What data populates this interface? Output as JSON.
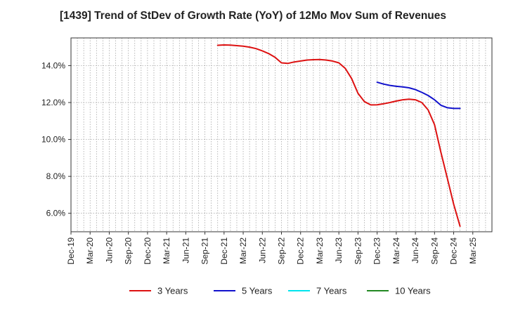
{
  "chart_data": {
    "type": "line",
    "title": "[1439]  Trend of StDev of Growth Rate (YoY) of 12Mo Mov Sum of Revenues",
    "xlabel": "",
    "ylabel": "",
    "ylim": [
      5.0,
      15.5
    ],
    "y_ticks": [
      6.0,
      8.0,
      10.0,
      12.0,
      14.0
    ],
    "y_tick_labels": [
      "6.0%",
      "8.0%",
      "10.0%",
      "12.0%",
      "14.0%"
    ],
    "x_range_months": [
      0,
      66
    ],
    "x_ticks": [
      {
        "label": "Dec-19",
        "m": 0
      },
      {
        "label": "Mar-20",
        "m": 3
      },
      {
        "label": "Jun-20",
        "m": 6
      },
      {
        "label": "Sep-20",
        "m": 9
      },
      {
        "label": "Dec-20",
        "m": 12
      },
      {
        "label": "Mar-21",
        "m": 15
      },
      {
        "label": "Jun-21",
        "m": 18
      },
      {
        "label": "Sep-21",
        "m": 21
      },
      {
        "label": "Dec-21",
        "m": 24
      },
      {
        "label": "Mar-22",
        "m": 27
      },
      {
        "label": "Jun-22",
        "m": 30
      },
      {
        "label": "Sep-22",
        "m": 33
      },
      {
        "label": "Dec-22",
        "m": 36
      },
      {
        "label": "Mar-23",
        "m": 39
      },
      {
        "label": "Jun-23",
        "m": 42
      },
      {
        "label": "Sep-23",
        "m": 45
      },
      {
        "label": "Dec-23",
        "m": 48
      },
      {
        "label": "Mar-24",
        "m": 51
      },
      {
        "label": "Jun-24",
        "m": 54
      },
      {
        "label": "Sep-24",
        "m": 57
      },
      {
        "label": "Dec-24",
        "m": 60
      },
      {
        "label": "Mar-25",
        "m": 63
      }
    ],
    "grid": true,
    "legend_position": "bottom",
    "series": [
      {
        "name": "3 Years",
        "color": "#dd1111",
        "points": [
          [
            23,
            15.1
          ],
          [
            24,
            15.12
          ],
          [
            25,
            15.11
          ],
          [
            26,
            15.08
          ],
          [
            27,
            15.05
          ],
          [
            28,
            15.0
          ],
          [
            29,
            14.92
          ],
          [
            30,
            14.8
          ],
          [
            31,
            14.65
          ],
          [
            32,
            14.45
          ],
          [
            33,
            14.15
          ],
          [
            34,
            14.12
          ],
          [
            35,
            14.2
          ],
          [
            36,
            14.25
          ],
          [
            37,
            14.3
          ],
          [
            38,
            14.32
          ],
          [
            39,
            14.33
          ],
          [
            40,
            14.3
          ],
          [
            41,
            14.25
          ],
          [
            42,
            14.15
          ],
          [
            43,
            13.85
          ],
          [
            44,
            13.3
          ],
          [
            45,
            12.5
          ],
          [
            46,
            12.05
          ],
          [
            47,
            11.87
          ],
          [
            48,
            11.88
          ],
          [
            49,
            11.93
          ],
          [
            50,
            12.0
          ],
          [
            51,
            12.08
          ],
          [
            52,
            12.15
          ],
          [
            53,
            12.18
          ],
          [
            54,
            12.15
          ],
          [
            55,
            12.0
          ],
          [
            56,
            11.6
          ],
          [
            57,
            10.8
          ],
          [
            58,
            9.3
          ],
          [
            59,
            7.9
          ],
          [
            60,
            6.5
          ],
          [
            61,
            5.3
          ]
        ]
      },
      {
        "name": "5 Years",
        "color": "#1111cc",
        "points": [
          [
            48,
            13.1
          ],
          [
            49,
            13.0
          ],
          [
            50,
            12.93
          ],
          [
            51,
            12.88
          ],
          [
            52,
            12.85
          ],
          [
            53,
            12.8
          ],
          [
            54,
            12.7
          ],
          [
            55,
            12.55
          ],
          [
            56,
            12.38
          ],
          [
            57,
            12.15
          ],
          [
            58,
            11.85
          ],
          [
            59,
            11.72
          ],
          [
            60,
            11.68
          ],
          [
            61,
            11.68
          ]
        ]
      },
      {
        "name": "7 Years",
        "color": "#00e5ee",
        "points": []
      },
      {
        "name": "10 Years",
        "color": "#228822",
        "points": []
      }
    ]
  }
}
